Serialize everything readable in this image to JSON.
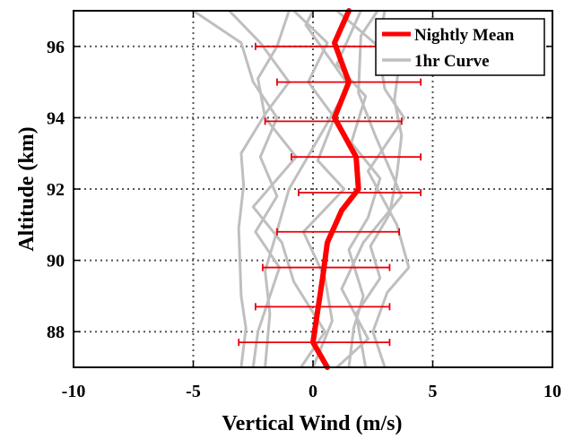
{
  "chart_data": {
    "type": "line",
    "xlabel": "Vertical Wind (m/s)",
    "ylabel": "Altitude (km)",
    "xlim": [
      -10,
      10
    ],
    "ylim": [
      87,
      97
    ],
    "xticks": [
      -10,
      -5,
      0,
      5,
      10
    ],
    "yticks": [
      88,
      90,
      92,
      94,
      96
    ],
    "grid": "dotted",
    "legend_position": "top-right",
    "legend": [
      "Nightly Mean",
      "1hr Curve"
    ],
    "colors": {
      "mean": "#ff0000",
      "curves": "#bfbfbf",
      "errorbar": "#e8000b"
    },
    "series": [
      {
        "name": "Nightly Mean",
        "points": [
          [
            0.6,
            87
          ],
          [
            0,
            87.7
          ],
          [
            0.2,
            88.6
          ],
          [
            0.4,
            89.5
          ],
          [
            0.6,
            90.5
          ],
          [
            1.2,
            91.4
          ],
          [
            1.9,
            92
          ],
          [
            1.8,
            92.9
          ],
          [
            0.9,
            94
          ],
          [
            1.5,
            95
          ],
          [
            0.9,
            96.1
          ],
          [
            1.5,
            97
          ]
        ],
        "error_bars": [
          {
            "y": 87.7,
            "xmin": -3.1,
            "xmax": 3.2
          },
          {
            "y": 88.7,
            "xmin": -2.4,
            "xmax": 3.2
          },
          {
            "y": 89.8,
            "xmin": -2.1,
            "xmax": 3.2
          },
          {
            "y": 90.8,
            "xmin": -1.5,
            "xmax": 3.6
          },
          {
            "y": 91.9,
            "xmin": -0.6,
            "xmax": 4.5
          },
          {
            "y": 92.9,
            "xmin": -0.9,
            "xmax": 4.5
          },
          {
            "y": 93.9,
            "xmin": -2.0,
            "xmax": 3.7
          },
          {
            "y": 95.0,
            "xmin": -1.5,
            "xmax": 4.5
          },
          {
            "y": 96.0,
            "xmin": -2.4,
            "xmax": 4.3
          }
        ]
      },
      {
        "name": "1hr Curve",
        "curves": [
          [
            [
              -2.5,
              87
            ],
            [
              -2.3,
              88
            ],
            [
              -1.4,
              89.8
            ],
            [
              -2.4,
              90.8
            ],
            [
              -1.5,
              91.8
            ],
            [
              -2.2,
              92.9
            ],
            [
              -1.5,
              94
            ],
            [
              -2.5,
              95
            ],
            [
              -3.0,
              96.1
            ],
            [
              -5.0,
              97
            ]
          ],
          [
            [
              -3.0,
              87
            ],
            [
              -2.8,
              88.1
            ],
            [
              -3.0,
              89
            ],
            [
              -3.1,
              90.9
            ],
            [
              -2.9,
              92.1
            ],
            [
              -3.0,
              93
            ],
            [
              -2.0,
              94.1
            ],
            [
              -1.0,
              95
            ],
            [
              -2.2,
              96.1
            ],
            [
              -3.5,
              97
            ]
          ],
          [
            [
              -0.5,
              87
            ],
            [
              0.5,
              88
            ],
            [
              -0.8,
              89.4
            ],
            [
              -1.3,
              90.5
            ],
            [
              -2.5,
              91.5
            ],
            [
              -0.7,
              92.9
            ],
            [
              -2.0,
              94
            ],
            [
              -2.3,
              95.1
            ],
            [
              -1.5,
              96
            ],
            [
              -1.0,
              97
            ]
          ],
          [
            [
              0.0,
              87
            ],
            [
              0.8,
              88.3
            ],
            [
              0.5,
              89.5
            ],
            [
              -0.4,
              90.8
            ],
            [
              1.3,
              92
            ],
            [
              0.2,
              92.8
            ],
            [
              0.9,
              94
            ],
            [
              -0.2,
              95
            ],
            [
              0.6,
              96.1
            ],
            [
              -0.8,
              97
            ]
          ],
          [
            [
              1.5,
              87
            ],
            [
              1.7,
              88.1
            ],
            [
              2.1,
              89
            ],
            [
              1.5,
              90.3
            ],
            [
              2.3,
              91.2
            ],
            [
              2.8,
              92.3
            ],
            [
              1.6,
              93.3
            ],
            [
              2.2,
              94.6
            ],
            [
              1.0,
              95.5
            ],
            [
              2.0,
              97
            ]
          ],
          [
            [
              3.0,
              87
            ],
            [
              2.5,
              88
            ],
            [
              3.1,
              89.1
            ],
            [
              4.0,
              89.8
            ],
            [
              3.5,
              91
            ],
            [
              2.3,
              92.5
            ],
            [
              3.8,
              94
            ],
            [
              3.0,
              94.8
            ],
            [
              2.7,
              96
            ],
            [
              3.0,
              97
            ]
          ],
          [
            [
              1.0,
              87
            ],
            [
              2.3,
              87.8
            ],
            [
              1.2,
              89.2
            ],
            [
              2.1,
              90.5
            ],
            [
              3.7,
              91.8
            ],
            [
              2.6,
              93.5
            ],
            [
              1.9,
              94.7
            ],
            [
              2.0,
              96.3
            ],
            [
              2.7,
              97
            ]
          ],
          [
            [
              -2.0,
              87
            ],
            [
              -1.8,
              88.5
            ],
            [
              -2.0,
              89.7
            ],
            [
              -1.6,
              90.6
            ],
            [
              -1.0,
              92
            ],
            [
              0.3,
              93.5
            ],
            [
              1.5,
              94.9
            ],
            [
              -0.3,
              96.6
            ],
            [
              0.0,
              97
            ]
          ],
          [
            [
              2.2,
              87
            ],
            [
              1.8,
              88.5
            ],
            [
              2.8,
              89.5
            ],
            [
              2.4,
              90.4
            ],
            [
              3.2,
              91.3
            ],
            [
              3.5,
              92.4
            ],
            [
              3.7,
              93.5
            ],
            [
              3.4,
              94.5
            ],
            [
              3.6,
              95.5
            ],
            [
              1.0,
              97
            ]
          ]
        ]
      }
    ]
  }
}
